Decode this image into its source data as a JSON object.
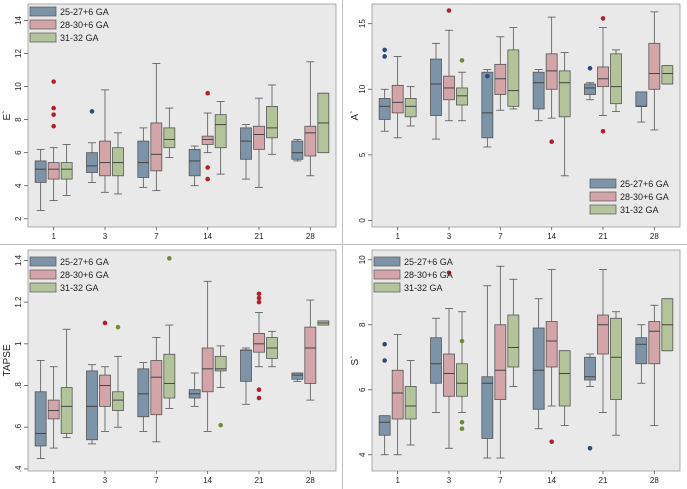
{
  "legend": [
    "25-27+6 GA",
    "28-30+6 GA",
    "31-32 GA"
  ],
  "colors": {
    "series": [
      "#7c93a8",
      "#d3a5a8",
      "#b4c49a"
    ],
    "plot_bg": "#e9e9e9",
    "outlier": "#b3202a"
  },
  "chart_data": [
    {
      "type": "box",
      "ylabel": "E`",
      "categories": [
        "1",
        "3",
        "7",
        "14",
        "21",
        "28"
      ],
      "yticks": [
        "2",
        "4",
        "6",
        "8",
        "10",
        "12",
        "14"
      ],
      "ylim": [
        1.5,
        15
      ],
      "legend_position": "top-left",
      "series": [
        {
          "name": "25-27+6 GA",
          "boxes": [
            {
              "min": 2.5,
              "q1": 4.2,
              "med": 5.0,
              "q3": 5.5,
              "max": 6.2,
              "outliers": []
            },
            {
              "min": 4.2,
              "q1": 4.8,
              "med": 5.2,
              "q3": 6.0,
              "max": 6.6,
              "outliers": [
                8.5
              ]
            },
            {
              "min": 3.9,
              "q1": 4.5,
              "med": 5.4,
              "q3": 6.7,
              "max": 7.5,
              "outliers": []
            },
            {
              "min": 4.0,
              "q1": 4.6,
              "med": 5.5,
              "q3": 6.2,
              "max": 6.4,
              "outliers": []
            },
            {
              "min": 4.4,
              "q1": 5.6,
              "med": 6.7,
              "q3": 7.5,
              "max": 7.7,
              "outliers": []
            },
            {
              "min": 5.5,
              "q1": 5.6,
              "med": 6.0,
              "q3": 6.7,
              "max": 6.8,
              "outliers": []
            }
          ]
        },
        {
          "name": "28-30+6 GA",
          "boxes": [
            {
              "min": 3.1,
              "q1": 4.4,
              "med": 5.0,
              "q3": 5.4,
              "max": 6.3,
              "outliers": [
                7.6,
                8.3,
                8.7,
                10.3
              ]
            },
            {
              "min": 3.6,
              "q1": 4.6,
              "med": 5.4,
              "q3": 6.7,
              "max": 9.8,
              "outliers": []
            },
            {
              "min": 3.7,
              "q1": 4.9,
              "med": 5.9,
              "q3": 7.8,
              "max": 11.4,
              "outliers": []
            },
            {
              "min": 6.0,
              "q1": 6.5,
              "med": 6.8,
              "q3": 7.0,
              "max": 8.4,
              "outliers": [
                4.4,
                5.1,
                9.6
              ]
            },
            {
              "min": 3.9,
              "q1": 6.2,
              "med": 7.1,
              "q3": 7.6,
              "max": 9.3,
              "outliers": []
            },
            {
              "min": 4.6,
              "q1": 5.8,
              "med": 7.2,
              "q3": 7.6,
              "max": 11.5,
              "outliers": []
            }
          ]
        },
        {
          "name": "31-32 GA",
          "boxes": [
            {
              "min": 3.4,
              "q1": 4.4,
              "med": 5.0,
              "q3": 5.4,
              "max": 6.5,
              "outliers": []
            },
            {
              "min": 3.5,
              "q1": 4.6,
              "med": 5.4,
              "q3": 6.3,
              "max": 7.2,
              "outliers": []
            },
            {
              "min": 5.7,
              "q1": 6.3,
              "med": 6.8,
              "q3": 7.5,
              "max": 8.7,
              "outliers": []
            },
            {
              "min": 4.7,
              "q1": 6.3,
              "med": 7.7,
              "q3": 8.3,
              "max": 9.1,
              "outliers": []
            },
            {
              "min": 5.9,
              "q1": 6.9,
              "med": 7.5,
              "q3": 8.8,
              "max": 10.1,
              "outliers": []
            },
            {
              "min": 6.0,
              "q1": 6.0,
              "med": 7.8,
              "q3": 9.6,
              "max": 9.6,
              "outliers": []
            }
          ]
        }
      ]
    },
    {
      "type": "box",
      "ylabel": "A`",
      "categories": [
        "1",
        "3",
        "7",
        "14",
        "21",
        "28"
      ],
      "yticks": [
        "0",
        "5",
        "10",
        "15"
      ],
      "ylim": [
        -0.5,
        16.5
      ],
      "legend_position": "bottom-right",
      "series": [
        {
          "name": "25-27+6 GA",
          "boxes": [
            {
              "min": 6.8,
              "q1": 7.7,
              "med": 8.7,
              "q3": 9.3,
              "max": 10.0,
              "outliers": [
                12.5,
                13.0
              ]
            },
            {
              "min": 6.2,
              "q1": 8.0,
              "med": 10.4,
              "q3": 12.3,
              "max": 13.5,
              "outliers": []
            },
            {
              "min": 5.6,
              "q1": 6.3,
              "med": 8.2,
              "q3": 11.3,
              "max": 11.5,
              "outliers": [
                11.0
              ]
            },
            {
              "min": 7.6,
              "q1": 8.5,
              "med": 10.5,
              "q3": 11.3,
              "max": 11.5,
              "outliers": []
            },
            {
              "min": 9.2,
              "q1": 9.6,
              "med": 10.1,
              "q3": 10.4,
              "max": 10.5,
              "outliers": [
                11.6
              ]
            },
            {
              "min": 7.5,
              "q1": 8.7,
              "med": 8.7,
              "q3": 9.8,
              "max": 9.8,
              "outliers": []
            }
          ]
        },
        {
          "name": "28-30+6 GA",
          "boxes": [
            {
              "min": 6.3,
              "q1": 8.2,
              "med": 9.0,
              "q3": 10.3,
              "max": 12.5,
              "outliers": []
            },
            {
              "min": 7.6,
              "q1": 9.2,
              "med": 10.1,
              "q3": 11.0,
              "max": 14.5,
              "outliers": [
                16.0
              ]
            },
            {
              "min": 8.4,
              "q1": 9.6,
              "med": 10.8,
              "q3": 11.9,
              "max": 14.0,
              "outliers": []
            },
            {
              "min": 7.8,
              "q1": 10.0,
              "med": 11.4,
              "q3": 12.7,
              "max": 15.5,
              "outliers": [
                6.0
              ]
            },
            {
              "min": 8.0,
              "q1": 10.2,
              "med": 10.8,
              "q3": 11.7,
              "max": 14.7,
              "outliers": [
                15.4,
                6.8
              ]
            },
            {
              "min": 6.9,
              "q1": 10.0,
              "med": 11.2,
              "q3": 13.5,
              "max": 15.9,
              "outliers": []
            }
          ]
        },
        {
          "name": "31-32 GA",
          "boxes": [
            {
              "min": 7.2,
              "q1": 7.9,
              "med": 8.7,
              "q3": 9.3,
              "max": 10.2,
              "outliers": []
            },
            {
              "min": 7.6,
              "q1": 8.8,
              "med": 9.5,
              "q3": 10.1,
              "max": 11.3,
              "outliers": [
                12.2
              ]
            },
            {
              "min": 8.5,
              "q1": 8.7,
              "med": 9.9,
              "q3": 13.0,
              "max": 14.7,
              "outliers": []
            },
            {
              "min": 3.4,
              "q1": 7.9,
              "med": 10.5,
              "q3": 11.4,
              "max": 12.8,
              "outliers": []
            },
            {
              "min": 8.3,
              "q1": 8.9,
              "med": 10.2,
              "q3": 12.7,
              "max": 13.0,
              "outliers": []
            },
            {
              "min": 10.4,
              "q1": 10.4,
              "med": 11.2,
              "q3": 11.8,
              "max": 11.8,
              "outliers": []
            }
          ]
        }
      ]
    },
    {
      "type": "box",
      "ylabel": "TAPSE",
      "categories": [
        "1",
        "3",
        "7",
        "14",
        "21",
        "28"
      ],
      "yticks": [
        ".4",
        ".6",
        ".8",
        "1",
        "1.2",
        "1.4"
      ],
      "ylim": [
        0.39,
        1.45
      ],
      "legend_position": "top-left",
      "series": [
        {
          "name": "25-27+6 GA",
          "boxes": [
            {
              "min": 0.45,
              "q1": 0.51,
              "med": 0.57,
              "q3": 0.77,
              "max": 0.92,
              "outliers": []
            },
            {
              "min": 0.52,
              "q1": 0.54,
              "med": 0.7,
              "q3": 0.87,
              "max": 0.9,
              "outliers": []
            },
            {
              "min": 0.58,
              "q1": 0.65,
              "med": 0.76,
              "q3": 0.88,
              "max": 0.91,
              "outliers": []
            },
            {
              "min": 0.7,
              "q1": 0.74,
              "med": 0.76,
              "q3": 0.78,
              "max": 0.86,
              "outliers": []
            },
            {
              "min": 0.71,
              "q1": 0.82,
              "med": 0.97,
              "q3": 0.97,
              "max": 0.98,
              "outliers": []
            },
            {
              "min": 0.82,
              "q1": 0.83,
              "med": 0.85,
              "q3": 0.86,
              "max": 0.86,
              "outliers": []
            }
          ]
        },
        {
          "name": "28-30+6 GA",
          "boxes": [
            {
              "min": 0.5,
              "q1": 0.64,
              "med": 0.68,
              "q3": 0.73,
              "max": 0.89,
              "outliers": []
            },
            {
              "min": 0.58,
              "q1": 0.7,
              "med": 0.8,
              "q3": 0.85,
              "max": 0.89,
              "outliers": [
                1.1
              ]
            },
            {
              "min": 0.53,
              "q1": 0.66,
              "med": 0.84,
              "q3": 0.92,
              "max": 1.03,
              "outliers": []
            },
            {
              "min": 0.58,
              "q1": 0.77,
              "med": 0.88,
              "q3": 0.98,
              "max": 1.3,
              "outliers": []
            },
            {
              "min": 0.89,
              "q1": 0.96,
              "med": 1.0,
              "q3": 1.05,
              "max": 1.15,
              "outliers": [
                1.2,
                1.22,
                1.24,
                0.78,
                0.74
              ]
            },
            {
              "min": 0.73,
              "q1": 0.81,
              "med": 0.98,
              "q3": 1.08,
              "max": 1.21,
              "outliers": []
            }
          ]
        },
        {
          "name": "31-32 GA",
          "boxes": [
            {
              "min": 0.55,
              "q1": 0.57,
              "med": 0.7,
              "q3": 0.79,
              "max": 1.07,
              "outliers": []
            },
            {
              "min": 0.6,
              "q1": 0.68,
              "med": 0.73,
              "q3": 0.77,
              "max": 0.94,
              "outliers": [
                1.08
              ]
            },
            {
              "min": 0.69,
              "q1": 0.74,
              "med": 0.81,
              "q3": 0.95,
              "max": 1.09,
              "outliers": [
                1.41
              ]
            },
            {
              "min": 0.79,
              "q1": 0.87,
              "med": 0.88,
              "q3": 0.94,
              "max": 0.99,
              "outliers": [
                0.61
              ]
            },
            {
              "min": 0.89,
              "q1": 0.93,
              "med": 0.98,
              "q3": 1.03,
              "max": 1.06,
              "outliers": []
            },
            {
              "min": 1.09,
              "q1": 1.09,
              "med": 1.1,
              "q3": 1.11,
              "max": 1.11,
              "outliers": []
            }
          ]
        }
      ]
    },
    {
      "type": "box",
      "ylabel": "S`",
      "categories": [
        "1",
        "3",
        "7",
        "14",
        "21",
        "28"
      ],
      "yticks": [
        "4",
        "6",
        "8",
        "10"
      ],
      "ylim": [
        3.5,
        10.3
      ],
      "legend_position": "top-left",
      "series": [
        {
          "name": "25-27+6 GA",
          "boxes": [
            {
              "min": 4.0,
              "q1": 4.6,
              "med": 5.0,
              "q3": 5.2,
              "max": 5.2,
              "outliers": [
                6.9,
                7.4
              ]
            },
            {
              "min": 5.3,
              "q1": 6.2,
              "med": 6.8,
              "q3": 7.6,
              "max": 8.2,
              "outliers": []
            },
            {
              "min": 3.9,
              "q1": 4.5,
              "med": 6.2,
              "q3": 6.4,
              "max": 9.2,
              "outliers": []
            },
            {
              "min": 4.8,
              "q1": 5.4,
              "med": 6.6,
              "q3": 7.9,
              "max": 8.8,
              "outliers": []
            },
            {
              "min": 6.1,
              "q1": 6.3,
              "med": 6.4,
              "q3": 7.0,
              "max": 7.1,
              "outliers": [
                4.2
              ]
            },
            {
              "min": 6.2,
              "q1": 6.8,
              "med": 7.4,
              "q3": 7.6,
              "max": 8.0,
              "outliers": []
            }
          ]
        },
        {
          "name": "28-30+6 GA",
          "boxes": [
            {
              "min": 4.0,
              "q1": 5.1,
              "med": 5.9,
              "q3": 6.6,
              "max": 7.7,
              "outliers": []
            },
            {
              "min": 4.2,
              "q1": 5.8,
              "med": 6.5,
              "q3": 7.1,
              "max": 8.5,
              "outliers": [
                9.6
              ]
            },
            {
              "min": 3.9,
              "q1": 5.7,
              "med": 6.6,
              "q3": 8.0,
              "max": 9.8,
              "outliers": []
            },
            {
              "min": 5.5,
              "q1": 6.7,
              "med": 7.5,
              "q3": 8.1,
              "max": 9.7,
              "outliers": [
                4.4
              ]
            },
            {
              "min": 5.3,
              "q1": 7.1,
              "med": 8.0,
              "q3": 8.3,
              "max": 9.7,
              "outliers": []
            },
            {
              "min": 4.9,
              "q1": 6.8,
              "med": 7.8,
              "q3": 8.1,
              "max": 8.6,
              "outliers": []
            }
          ]
        },
        {
          "name": "31-32 GA",
          "boxes": [
            {
              "min": 4.3,
              "q1": 5.1,
              "med": 5.5,
              "q3": 6.1,
              "max": 6.9,
              "outliers": []
            },
            {
              "min": 5.3,
              "q1": 5.8,
              "med": 6.2,
              "q3": 6.8,
              "max": 8.4,
              "outliers": [
                7.5,
                5.0,
                4.8
              ]
            },
            {
              "min": 6.1,
              "q1": 6.7,
              "med": 7.3,
              "q3": 8.3,
              "max": 9.4,
              "outliers": []
            },
            {
              "min": 4.9,
              "q1": 5.5,
              "med": 6.5,
              "q3": 7.2,
              "max": 7.2,
              "outliers": []
            },
            {
              "min": 4.6,
              "q1": 5.7,
              "med": 7.0,
              "q3": 8.2,
              "max": 8.4,
              "outliers": []
            },
            {
              "min": 7.2,
              "q1": 7.2,
              "med": 8.0,
              "q3": 8.8,
              "max": 8.8,
              "outliers": []
            }
          ]
        }
      ]
    }
  ]
}
